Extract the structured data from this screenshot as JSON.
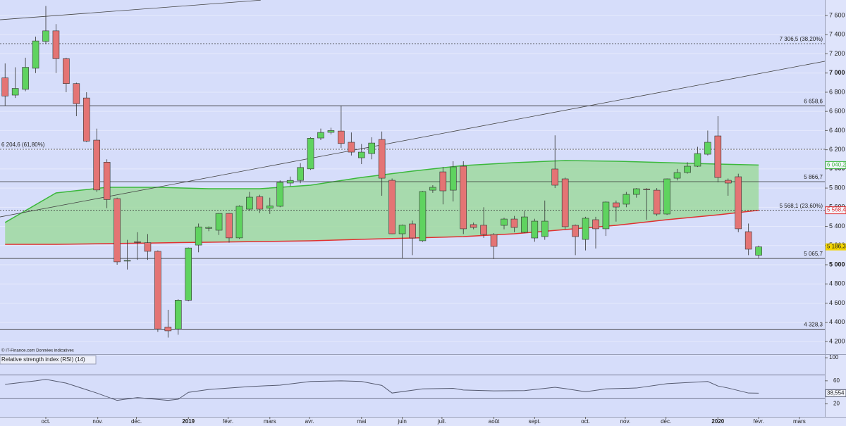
{
  "chart_data": {
    "type": "candlestick",
    "source": "© IT-Finance.com Données indicatives",
    "categories": [
      null,
      null,
      null,
      null,
      null,
      null,
      null,
      null,
      null,
      null,
      null,
      null,
      null,
      null,
      null,
      null,
      null,
      null,
      null,
      null,
      null,
      null,
      null,
      null,
      null,
      null,
      null,
      null,
      null,
      null,
      null,
      null,
      null,
      null,
      null,
      null,
      null,
      null,
      null,
      null,
      null,
      null,
      null,
      null,
      null,
      null,
      null,
      null,
      null,
      null,
      null,
      null,
      null,
      null,
      null,
      null,
      null,
      null,
      null,
      null,
      null,
      null,
      null,
      null,
      null,
      null,
      null,
      null,
      null,
      null,
      null,
      null,
      null,
      null,
      null
    ],
    "open": [
      6950,
      6770,
      6830,
      7050,
      7330,
      7440,
      7150,
      6890,
      6740,
      6300,
      6070,
      5690,
      5040,
      5240,
      5230,
      5140,
      4350,
      4330,
      4630,
      5205,
      5380,
      5360,
      5535,
      5280,
      5580,
      5710,
      5590,
      5610,
      5852,
      5880,
      6000,
      6322,
      6381,
      6395,
      6278,
      6116,
      6160,
      6307,
      5881,
      5323,
      5426,
      5250,
      5778,
      5969,
      5778,
      6028,
      5419,
      5412,
      5316,
      5411,
      5477,
      5338,
      5279,
      5294,
      5999,
      5896,
      5411,
      5264,
      5470,
      5375,
      5646,
      5632,
      5734,
      5790,
      5778,
      5529,
      5903,
      5962,
      6028,
      6153,
      6344,
      5881,
      5918,
      5345,
      5100
    ],
    "high": [
      7100,
      7060,
      7160,
      7380,
      7700,
      7510,
      7160,
      6900,
      6800,
      6420,
      6100,
      5700,
      5260,
      5340,
      5320,
      5150,
      4530,
      4640,
      5180,
      5430,
      5400,
      5540,
      5540,
      5620,
      5760,
      5730,
      5700,
      5880,
      5920,
      6060,
      6330,
      6420,
      6430,
      6660,
      6380,
      6260,
      6330,
      6390,
      5900,
      5420,
      5460,
      5770,
      5830,
      6020,
      6080,
      6080,
      5440,
      5600,
      5330,
      5490,
      5510,
      5560,
      5480,
      5670,
      6350,
      5910,
      5420,
      5500,
      5500,
      5660,
      5670,
      5760,
      5800,
      5800,
      5800,
      5900,
      6000,
      6070,
      6230,
      6400,
      6550,
      5900,
      5950,
      5430,
      5200
    ],
    "low": [
      6660,
      6740,
      6810,
      7000,
      7300,
      7000,
      6800,
      6550,
      6280,
      5760,
      5590,
      5000,
      4950,
      5050,
      5050,
      4300,
      4240,
      4270,
      4620,
      5130,
      5350,
      5310,
      5230,
      5270,
      5560,
      5540,
      5530,
      5600,
      5820,
      5850,
      5990,
      6300,
      6360,
      6220,
      6140,
      6050,
      6100,
      5720,
      5320,
      5070,
      5100,
      5240,
      5750,
      5630,
      5660,
      5320,
      5370,
      5280,
      5060,
      5370,
      5340,
      5330,
      5240,
      5260,
      5800,
      5370,
      5100,
      5150,
      5170,
      5300,
      5450,
      5600,
      5700,
      5470,
      5510,
      5520,
      5880,
      5950,
      6020,
      6140,
      5860,
      5720,
      5340,
      5100,
      5070
    ],
    "close": [
      6760,
      6840,
      7060,
      7335,
      7440,
      7150,
      6890,
      6680,
      6290,
      5780,
      5680,
      5030,
      5045,
      5235,
      5140,
      4330,
      4310,
      4630,
      5175,
      5395,
      5390,
      5535,
      5280,
      5610,
      5705,
      5580,
      5615,
      5860,
      5880,
      6015,
      6320,
      6380,
      6400,
      6265,
      6175,
      6175,
      6270,
      5903,
      5323,
      5412,
      5279,
      5764,
      5808,
      5771,
      6021,
      5375,
      5389,
      5316,
      5191,
      5477,
      5389,
      5499,
      5455,
      5455,
      5830,
      5397,
      5294,
      5485,
      5375,
      5654,
      5602,
      5734,
      5793,
      5786,
      5529,
      5896,
      5962,
      6028,
      6160,
      6278,
      5910,
      5852,
      5375,
      5162,
      5186.3
    ],
    "last_label": {
      "value": 5186.3,
      "label": "5 186,3"
    },
    "up_color": "#5fd35f",
    "down_color": "#e47474",
    "moving_averages": [
      {
        "color": "#3cb83c",
        "x": [
          0,
          5,
          10,
          15,
          20,
          25,
          30,
          35,
          40,
          45,
          50,
          55,
          60,
          65,
          70,
          74
        ],
        "values": [
          5441,
          5749,
          5808,
          5808,
          5793,
          5793,
          5830,
          5911,
          5977,
          6035,
          6065,
          6087,
          6080,
          6065,
          6050,
          6040.2
        ],
        "last_label": {
          "value": 6040.2,
          "label": "6 040,2"
        }
      },
      {
        "color": "#e03030",
        "x": [
          0,
          5,
          10,
          15,
          20,
          25,
          30,
          35,
          40,
          45,
          50,
          55,
          60,
          65,
          70,
          74
        ],
        "values": [
          5213,
          5213,
          5220,
          5228,
          5235,
          5242,
          5250,
          5265,
          5279,
          5294,
          5323,
          5367,
          5411,
          5470,
          5521,
          5568.4
        ],
        "last_label": {
          "value": 5568.4,
          "label": "5 568,4"
        }
      }
    ],
    "band_fill": "#9fd99f",
    "trendlines": [
      {
        "x": [
          -0.5,
          25.1
        ],
        "values": [
          7556,
          7760
        ]
      },
      {
        "x": [
          -0.5,
          80.5
        ],
        "values": [
          5499,
          7123
        ]
      }
    ],
    "levels": [
      {
        "value": 7306.5,
        "label": "7 306,5 (38,20%)",
        "dashed": true
      },
      {
        "value": 6658.6,
        "label": "6 658,6",
        "dashed": false
      },
      {
        "value": 6204.6,
        "label": "6 204,6 (61,80%)",
        "dashed": true,
        "label_side": "left"
      },
      {
        "value": 5866.7,
        "label": "5 866,7",
        "dashed": false
      },
      {
        "value": 5568.1,
        "label": "5 568,1 (23,60%)",
        "dashed": true
      },
      {
        "value": 5065.7,
        "label": "5 065,7",
        "dashed": false
      },
      {
        "value": 4328.3,
        "label": "4 328,3",
        "dashed": false
      }
    ],
    "xlim": [
      -0.5,
      80.5
    ],
    "ylim": [
      4067,
      7762
    ],
    "yticks": [
      {
        "value": 4200,
        "label": "4 200"
      },
      {
        "value": 4400,
        "label": "4 400"
      },
      {
        "value": 4600,
        "label": "4 600"
      },
      {
        "value": 4800,
        "label": "4 800"
      },
      {
        "value": 5000,
        "label": "5 000"
      },
      {
        "value": 5200,
        "label": "5 200"
      },
      {
        "value": 5400,
        "label": "5 400"
      },
      {
        "value": 5600,
        "label": "5 600"
      },
      {
        "value": 5800,
        "label": "5 800"
      },
      {
        "value": 6000,
        "label": "6 000"
      },
      {
        "value": 6200,
        "label": "6 200"
      },
      {
        "value": 6400,
        "label": "6 400"
      },
      {
        "value": 6600,
        "label": "6 600"
      },
      {
        "value": 6800,
        "label": "6 800"
      },
      {
        "value": 7000,
        "label": "7 000"
      },
      {
        "value": 7200,
        "label": "7 200"
      },
      {
        "value": 7400,
        "label": "7 400"
      },
      {
        "value": 7600,
        "label": "7 600"
      }
    ],
    "xticks": [
      {
        "value": 4,
        "label": "oct."
      },
      {
        "value": 9.1,
        "label": "nov."
      },
      {
        "value": 12.9,
        "label": "déc."
      },
      {
        "value": 18,
        "label": "2019"
      },
      {
        "value": 21.9,
        "label": "févr."
      },
      {
        "value": 26,
        "label": "mars"
      },
      {
        "value": 29.9,
        "label": "avr."
      },
      {
        "value": 35,
        "label": "mai"
      },
      {
        "value": 39,
        "label": "juin"
      },
      {
        "value": 42.9,
        "label": "juil."
      },
      {
        "value": 48,
        "label": "août"
      },
      {
        "value": 52,
        "label": "sept."
      },
      {
        "value": 57,
        "label": "oct."
      },
      {
        "value": 60.9,
        "label": "nov."
      },
      {
        "value": 64.9,
        "label": "déc."
      },
      {
        "value": 70,
        "label": "2020"
      },
      {
        "value": 74,
        "label": "févr."
      },
      {
        "value": 78,
        "label": "mars"
      }
    ],
    "rsi": {
      "title": "Relative strength index (RSI) (14)",
      "color": "#555a70",
      "x": [
        0,
        3,
        4,
        6,
        9,
        11,
        13,
        16,
        17,
        18,
        20,
        24,
        27,
        30,
        33,
        35,
        37,
        38,
        41,
        44,
        45,
        48,
        51,
        54,
        55,
        57,
        59,
        62,
        65,
        69,
        70,
        71,
        73,
        74
      ],
      "values": [
        53.8,
        60,
        62.5,
        56,
        38.8,
        26,
        31,
        26,
        28,
        40,
        45,
        50,
        52.5,
        58.8,
        60,
        58.8,
        52,
        38.8,
        46,
        47,
        44,
        42.5,
        43,
        48.8,
        46.5,
        41,
        46,
        47.5,
        55,
        58.8,
        51,
        47.5,
        38.8,
        38.554
      ],
      "last_label": {
        "value": 38.554,
        "label": "38,554"
      },
      "ylim": [
        -2.5,
        103.75
      ],
      "yticks": [
        100,
        60,
        20
      ],
      "levels": [
        70,
        30
      ]
    }
  }
}
